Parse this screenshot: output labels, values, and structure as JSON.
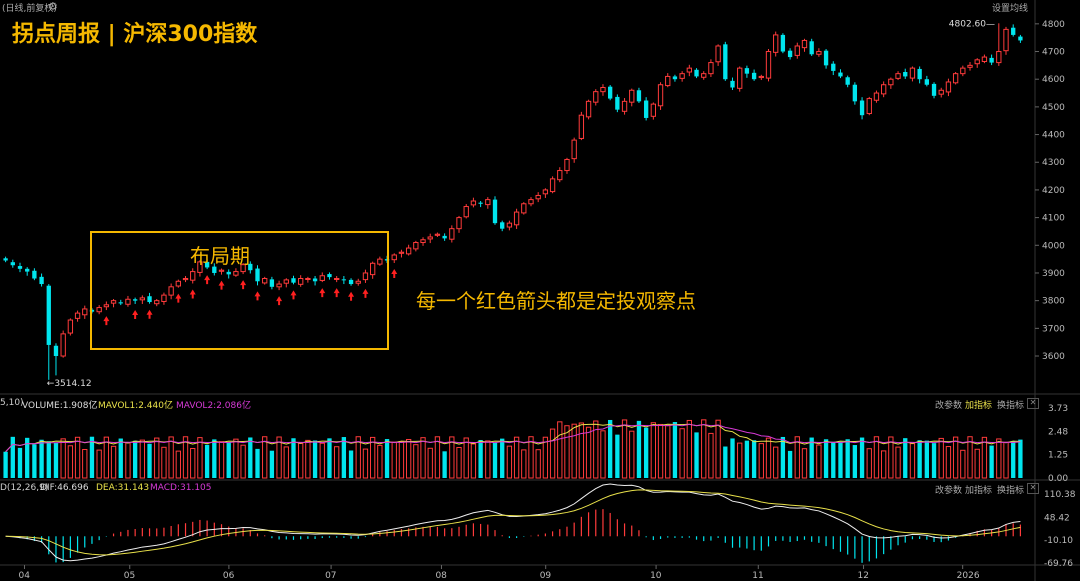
{
  "header": {
    "period_mode": "(日线,前复权)",
    "settings_label": "设置均线"
  },
  "overlay": {
    "title": "拐点周报 | 沪深300指数",
    "box_label": "布局期",
    "note": "每一个红色箭头都是定投观察点"
  },
  "colors": {
    "up": "#ff3b3b",
    "down": "#00e5ee",
    "accent": "#f5b800",
    "ma1": "#e8e04a",
    "ma2": "#d63ad6"
  },
  "volume_panel": {
    "label_prefix": "5,10)",
    "volume_text": "VOLUME:1.908亿",
    "mavol1_text": "MAVOL1:2.440亿",
    "mavol2_text": "MAVOL2:2.086亿",
    "controls": [
      "改参数",
      "加指标",
      "换指标"
    ],
    "y_ticks": [
      "3.73",
      "2.48",
      "1.25",
      "0.00"
    ]
  },
  "macd_panel": {
    "label_prefix": "D(12,26,9)",
    "dif_text": "DIF:46.696",
    "dea_text": "DEA:31.143",
    "macd_text": "MACD:31.105",
    "controls": [
      "改参数",
      "加指标",
      "换指标"
    ],
    "y_ticks": [
      "110.38",
      "48.42",
      "-10.10",
      "-69.76"
    ]
  },
  "chart_data": {
    "type": "candlestick",
    "y_ticks": [
      3600,
      3700,
      3800,
      3900,
      4000,
      4100,
      4200,
      4300,
      4400,
      4500,
      4600,
      4700,
      4800
    ],
    "ylim": [
      3470,
      4850
    ],
    "x_tick_labels": [
      "04",
      "05",
      "06",
      "07",
      "08",
      "09",
      "10",
      "11",
      "12",
      "2026"
    ],
    "annotations": {
      "low": "3514.12",
      "high": "4802.60"
    },
    "closes": [
      3945,
      3928,
      3915,
      3905,
      3880,
      3860,
      3640,
      3600,
      3680,
      3730,
      3755,
      3770,
      3760,
      3775,
      3785,
      3800,
      3790,
      3805,
      3800,
      3810,
      3795,
      3800,
      3820,
      3850,
      3870,
      3880,
      3905,
      3940,
      3920,
      3900,
      3910,
      3895,
      3905,
      3930,
      3910,
      3870,
      3880,
      3850,
      3860,
      3875,
      3865,
      3880,
      3880,
      3870,
      3890,
      3885,
      3880,
      3875,
      3860,
      3870,
      3900,
      3935,
      3950,
      3945,
      3965,
      3975,
      3990,
      4010,
      4020,
      4030,
      4040,
      4025,
      4060,
      4100,
      4140,
      4160,
      4150,
      4165,
      4080,
      4060,
      4080,
      4120,
      4150,
      4165,
      4180,
      4200,
      4240,
      4270,
      4310,
      4380,
      4470,
      4520,
      4555,
      4570,
      4530,
      4490,
      4520,
      4560,
      4520,
      4460,
      4510,
      4580,
      4610,
      4600,
      4620,
      4640,
      4610,
      4620,
      4660,
      4720,
      4600,
      4570,
      4640,
      4620,
      4600,
      4610,
      4700,
      4760,
      4700,
      4680,
      4720,
      4740,
      4690,
      4700,
      4650,
      4630,
      4610,
      4580,
      4520,
      4470,
      4530,
      4550,
      4580,
      4600,
      4620,
      4610,
      4640,
      4600,
      4580,
      4540,
      4560,
      4590,
      4620,
      4640,
      4650,
      4670,
      4680,
      4660,
      4700,
      4780,
      4760,
      4740
    ]
  }
}
